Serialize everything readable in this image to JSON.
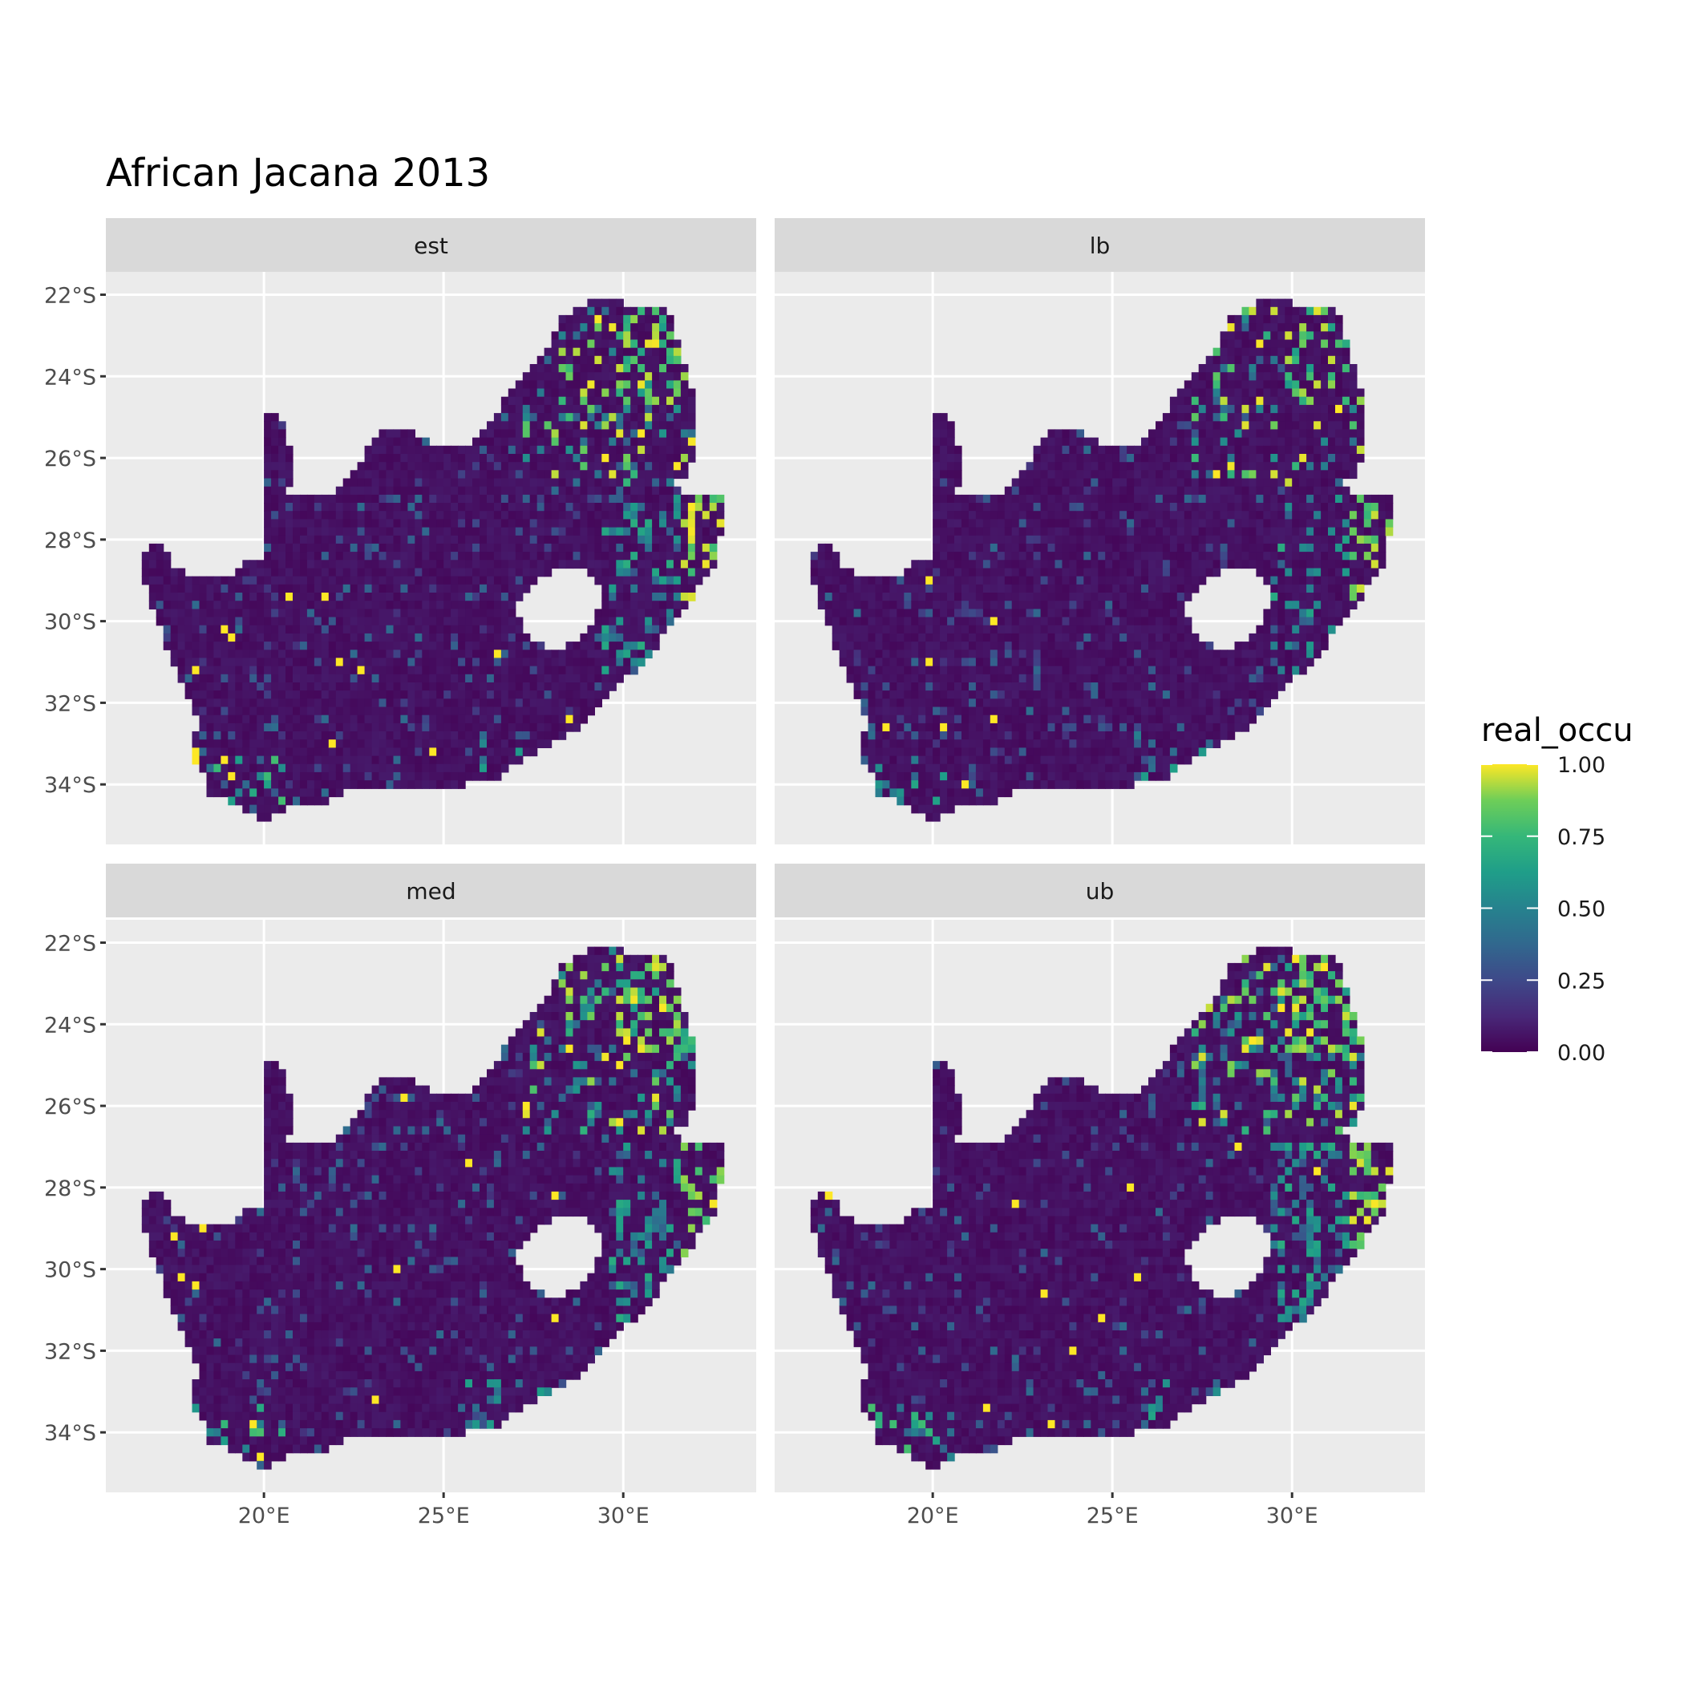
{
  "chart_data": {
    "type": "heatmap",
    "title": "African Jacana 2013",
    "xlabel": "",
    "ylabel": "",
    "panels": [
      "est",
      "lb",
      "med",
      "ub"
    ],
    "x_ticks": [
      "20°E",
      "25°E",
      "30°E"
    ],
    "x_tick_values": [
      20,
      25,
      30
    ],
    "y_ticks": [
      "22°S",
      "24°S",
      "26°S",
      "28°S",
      "30°S",
      "32°S",
      "34°S"
    ],
    "y_tick_values": [
      -22,
      -24,
      -26,
      -28,
      -30,
      -32,
      -34
    ],
    "xlim": [
      15.6,
      33.7
    ],
    "ylim": [
      -35.47,
      -21.44
    ],
    "grid": true,
    "legend": {
      "title": "real_occu",
      "position": "right",
      "labels": [
        "1.00",
        "0.75",
        "0.50",
        "0.25",
        "0.00"
      ],
      "values": [
        1.0,
        0.75,
        0.5,
        0.25,
        0.0
      ],
      "range": [
        0,
        1
      ],
      "colormap": "viridis"
    },
    "colors": {
      "panel_background": "#ebebeb",
      "strip_background": "#d9d9d9",
      "grid": "#ffffff",
      "low": "#440154",
      "high": "#fde725"
    }
  }
}
